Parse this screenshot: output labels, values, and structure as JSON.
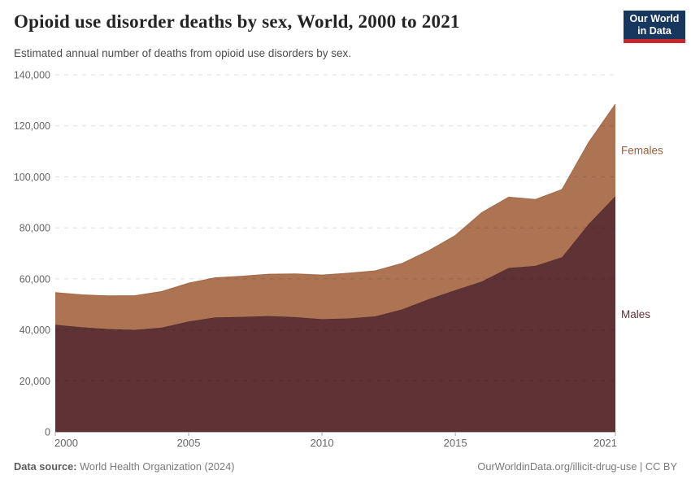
{
  "header": {
    "title": "Opioid use disorder deaths by sex, World, 2000 to 2021",
    "subtitle": "Estimated annual number of deaths from opioid use disorders by sex.",
    "logo": {
      "line1": "Our World",
      "line2": "in Data"
    }
  },
  "chart_data": {
    "type": "area",
    "stacked": true,
    "title": "Opioid use disorder deaths by sex, World, 2000 to 2021",
    "xlabel": "",
    "ylabel": "",
    "x": [
      2000,
      2001,
      2002,
      2003,
      2004,
      2005,
      2006,
      2007,
      2008,
      2009,
      2010,
      2011,
      2012,
      2013,
      2014,
      2015,
      2016,
      2017,
      2018,
      2019,
      2020,
      2021
    ],
    "series": [
      {
        "name": "Males",
        "color": "#5f3336",
        "edge_color": "#542d32",
        "label_color": "#5e3138",
        "values": [
          42000,
          41000,
          40300,
          40000,
          40900,
          43300,
          44900,
          45100,
          45400,
          45000,
          44200,
          44500,
          45300,
          48000,
          52000,
          55600,
          59000,
          64300,
          65100,
          68500,
          81500,
          92400
        ]
      },
      {
        "name": "Females",
        "color": "#ad7454",
        "edge_color": "#a56c49",
        "label_color": "#9c5f3d",
        "values": [
          12600,
          12700,
          13000,
          13400,
          14100,
          15000,
          15500,
          15900,
          16400,
          16900,
          17300,
          17700,
          17800,
          18000,
          19000,
          21400,
          27000,
          27700,
          26000,
          26500,
          32000,
          36100
        ]
      }
    ],
    "ylim": [
      0,
      140000
    ],
    "yticks": [
      0,
      20000,
      40000,
      60000,
      80000,
      100000,
      120000,
      140000
    ],
    "xticks": [
      2000,
      2005,
      2010,
      2015,
      2021
    ],
    "grid": "horizontal-dashed",
    "legend": "series-labels-right",
    "axis_text_color": "#666666",
    "grid_color": "#dcdcdc"
  },
  "footer": {
    "source_label": "Data source:",
    "source": " World Health Organization (2024)",
    "link": "OurWorldinData.org/illicit-drug-use | CC BY"
  }
}
